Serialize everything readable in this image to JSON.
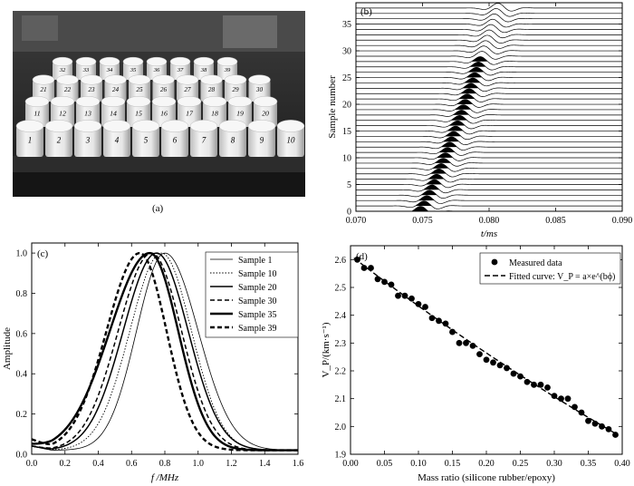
{
  "panel_a": {
    "caption": "(a)",
    "photo_alt": "photo-of-cylindrical-samples",
    "sample_labels_rows": [
      [
        "32",
        "33",
        "34",
        "35",
        "36",
        "37",
        "38",
        "39"
      ],
      [
        "21",
        "22",
        "23",
        "24",
        "25",
        "26",
        "27",
        "28",
        "29",
        "30"
      ],
      [
        "11",
        "12",
        "13",
        "14",
        "15",
        "16",
        "17",
        "18",
        "19",
        "20"
      ],
      [
        "1",
        "2",
        "3",
        "4",
        "5",
        "6",
        "7",
        "8",
        "9",
        "10"
      ]
    ]
  },
  "chart_data": [
    {
      "panel": "(b)",
      "type": "line",
      "title": "",
      "xlabel": "t/ms",
      "ylabel": "Sample number",
      "xlim": [
        0.07,
        0.09
      ],
      "ylim": [
        0,
        39
      ],
      "xticks": [
        "0.070",
        "0.075",
        "0.080",
        "0.085",
        "0.090"
      ],
      "yticks": [
        "0",
        "5",
        "10",
        "15",
        "20",
        "25",
        "30",
        "35"
      ],
      "num_traces": 39,
      "first_arrival_ms": {
        "sample_1": 0.0742,
        "sample_39": 0.08
      },
      "waveform_halfwidth_ms": 0.0011
    },
    {
      "panel": "(c)",
      "type": "line",
      "title": "",
      "xlabel": "f /MHz",
      "ylabel": "Amplitude",
      "xlim": [
        0,
        1.6
      ],
      "ylim": [
        0,
        1.05
      ],
      "xticks": [
        "0.0",
        "0.2",
        "0.4",
        "0.6",
        "0.8",
        "1.0",
        "1.2",
        "1.4",
        "1.6"
      ],
      "yticks": [
        "0.0",
        "0.2",
        "0.4",
        "0.6",
        "0.8",
        "1.0"
      ],
      "legend_position": "top-right",
      "series": [
        {
          "name": "Sample 1",
          "style": "thin-solid",
          "peak_mhz": 0.8,
          "sigma_left": 0.17,
          "sigma_right": 0.2
        },
        {
          "name": "Sample 10",
          "style": "thin-dotted",
          "peak_mhz": 0.78,
          "sigma_left": 0.19,
          "sigma_right": 0.18
        },
        {
          "name": "Sample 20",
          "style": "solid",
          "peak_mhz": 0.75,
          "sigma_left": 0.2,
          "sigma_right": 0.19
        },
        {
          "name": "Sample 30",
          "style": "dashed",
          "peak_mhz": 0.72,
          "sigma_left": 0.2,
          "sigma_right": 0.18
        },
        {
          "name": "Sample 35",
          "style": "thick-solid",
          "peak_mhz": 0.71,
          "sigma_left": 0.24,
          "sigma_right": 0.17
        },
        {
          "name": "Sample 39",
          "style": "thick-dashed",
          "peak_mhz": 0.65,
          "sigma_left": 0.2,
          "sigma_right": 0.16
        }
      ]
    },
    {
      "panel": "(d)",
      "type": "scatter",
      "title": "",
      "xlabel": "Mass ratio (silicone rubber/epoxy)",
      "ylabel": "V_P/(km·s⁻¹)",
      "xlim": [
        0,
        0.4
      ],
      "ylim": [
        1.9,
        2.65
      ],
      "xticks": [
        "0.00",
        "0.05",
        "0.10",
        "0.15",
        "0.20",
        "0.25",
        "0.30",
        "0.35",
        "0.40"
      ],
      "yticks": [
        "1.9",
        "2.0",
        "2.1",
        "2.2",
        "2.3",
        "2.4",
        "2.5",
        "2.6"
      ],
      "legend_position": "top-right",
      "legend": [
        "Measured data",
        "Fitted curve: V_P = a×e^(bϕ)"
      ],
      "series": [
        {
          "name": "Measured data",
          "x": [
            0.01,
            0.02,
            0.03,
            0.04,
            0.05,
            0.06,
            0.07,
            0.08,
            0.09,
            0.1,
            0.11,
            0.12,
            0.13,
            0.14,
            0.15,
            0.16,
            0.17,
            0.18,
            0.19,
            0.2,
            0.21,
            0.22,
            0.23,
            0.24,
            0.25,
            0.26,
            0.27,
            0.28,
            0.29,
            0.3,
            0.31,
            0.32,
            0.33,
            0.34,
            0.35,
            0.36,
            0.37,
            0.38,
            0.39
          ],
          "y": [
            2.6,
            2.57,
            2.57,
            2.53,
            2.52,
            2.51,
            2.47,
            2.47,
            2.46,
            2.44,
            2.43,
            2.39,
            2.38,
            2.37,
            2.34,
            2.3,
            2.3,
            2.29,
            2.26,
            2.24,
            2.23,
            2.22,
            2.21,
            2.19,
            2.18,
            2.16,
            2.15,
            2.15,
            2.14,
            2.11,
            2.1,
            2.1,
            2.07,
            2.05,
            2.02,
            2.01,
            2.0,
            1.99,
            1.97
          ]
        },
        {
          "name": "Fitted curve",
          "a": 2.615,
          "b": -0.72
        }
      ]
    }
  ]
}
